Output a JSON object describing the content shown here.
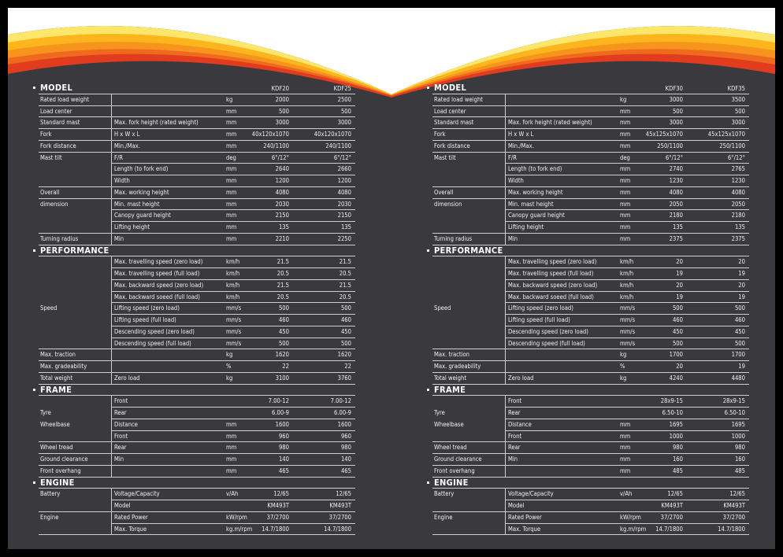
{
  "panels": [
    {
      "models": [
        "KDF20",
        "KDF25"
      ],
      "sections": [
        {
          "title": "MODEL",
          "rows": [
            {
              "label": "Rated load weight",
              "sub": "",
              "unit": "kg",
              "v1": "2000",
              "v2": "2500"
            },
            {
              "label": "Load center",
              "sub": "",
              "unit": "mm",
              "v1": "500",
              "v2": "500"
            },
            {
              "label": "Standard mast",
              "sub": "Max. fork height (rated weight)",
              "unit": "mm",
              "v1": "3000",
              "v2": "3000"
            },
            {
              "label": "Fork",
              "sub": "H x W x L",
              "unit": "mm",
              "v1": "40x120x1070",
              "v2": "40x120x1070"
            },
            {
              "label": "Fork distance",
              "sub": "Min./Max.",
              "unit": "mm",
              "v1": "240/1100",
              "v2": "240/1100"
            },
            {
              "label": "Mast tilt",
              "sub": "F/R",
              "unit": "deg",
              "v1": "6°/12°",
              "v2": "6°/12°"
            },
            {
              "label": "",
              "sub": "Length (to fork end)",
              "unit": "mm",
              "v1": "2640",
              "v2": "2660"
            },
            {
              "label": "",
              "sub": "Width",
              "unit": "mm",
              "v1": "1200",
              "v2": "1200"
            },
            {
              "label": "Overall",
              "sub": "Max. working height",
              "unit": "mm",
              "v1": "4080",
              "v2": "4080"
            },
            {
              "label": "dimension",
              "sub": "Min. mast height",
              "unit": "mm",
              "v1": "2030",
              "v2": "2030"
            },
            {
              "label": "",
              "sub": "Canopy guard height",
              "unit": "mm",
              "v1": "2150",
              "v2": "2150"
            },
            {
              "label": "",
              "sub": "Lifting height",
              "unit": "mm",
              "v1": "135",
              "v2": "135"
            },
            {
              "label": "Turning radius",
              "sub": "Min",
              "unit": "mm",
              "v1": "2210",
              "v2": "2250"
            }
          ]
        },
        {
          "title": "PERFORMANCE",
          "rows": [
            {
              "label": "",
              "sub": "Max. travelling speed (zero load)",
              "unit": "km/h",
              "v1": "21.5",
              "v2": "21.5"
            },
            {
              "label": "",
              "sub": "Max. travelling speed (full load)",
              "unit": "km/h",
              "v1": "20.5",
              "v2": "20.5"
            },
            {
              "label": "",
              "sub": "Max. backward speed (zero load)",
              "unit": "km/h",
              "v1": "21.5",
              "v2": "21.5"
            },
            {
              "label": "",
              "sub": "Max. backward soeed (full load)",
              "unit": "km/h",
              "v1": "20.5",
              "v2": "20.5"
            },
            {
              "label": "Speed",
              "sub": "Lifting speed (zero load)",
              "unit": "mm/s",
              "v1": "500",
              "v2": "500"
            },
            {
              "label": "",
              "sub": "Lifting speed (full load)",
              "unit": "mm/s",
              "v1": "460",
              "v2": "460"
            },
            {
              "label": "",
              "sub": "Descending speed (zero load)",
              "unit": "mm/s",
              "v1": "450",
              "v2": "450"
            },
            {
              "label": "",
              "sub": "Descending speed (full load)",
              "unit": "mm/s",
              "v1": "500",
              "v2": "500"
            },
            {
              "label": "Max. traction",
              "sub": "",
              "unit": "kg",
              "v1": "1620",
              "v2": "1620"
            },
            {
              "label": "Max. gradeability",
              "sub": "",
              "unit": "%",
              "v1": "22",
              "v2": "22"
            },
            {
              "label": "Total weight",
              "sub": "Zero load",
              "unit": "kg",
              "v1": "3100",
              "v2": "3760"
            }
          ]
        },
        {
          "title": "FRAME",
          "rows": [
            {
              "label": "",
              "sub": "Front",
              "unit": "",
              "v1": "7.00-12",
              "v2": "7.00-12"
            },
            {
              "label": "Tyre",
              "sub": "Rear",
              "unit": "",
              "v1": "6.00-9",
              "v2": "6.00-9"
            },
            {
              "label": "Wheelbase",
              "sub": "Distance",
              "unit": "mm",
              "v1": "1600",
              "v2": "1600"
            },
            {
              "label": "",
              "sub": "Front",
              "unit": "mm",
              "v1": "960",
              "v2": "960"
            },
            {
              "label": "Wheel tread",
              "sub": "Rear",
              "unit": "mm",
              "v1": "980",
              "v2": "980"
            },
            {
              "label": "Ground clearance",
              "sub": "Min",
              "unit": "mm",
              "v1": "140",
              "v2": "140"
            },
            {
              "label": "Front overhang",
              "sub": "",
              "unit": "mm",
              "v1": "465",
              "v2": "465"
            }
          ]
        },
        {
          "title": "ENGINE",
          "rows": [
            {
              "label": "Battery",
              "sub": "Voltage/Capacity",
              "unit": "v/Ah",
              "v1": "12/65",
              "v2": "12/65"
            },
            {
              "label": "",
              "sub": "Model",
              "unit": "",
              "v1": "KM493T",
              "v2": "KM493T"
            },
            {
              "label": "Engine",
              "sub": "Rated  Power",
              "unit": "kW/rpm",
              "v1": "37/2700",
              "v2": "37/2700"
            },
            {
              "label": "",
              "sub": "Max. Torque",
              "unit": "kg.m/rpm",
              "v1": "14.7/1800",
              "v2": "14.7/1800"
            }
          ]
        }
      ]
    },
    {
      "models": [
        "KDF30",
        "KDF35"
      ],
      "sections": [
        {
          "title": "MODEL",
          "rows": [
            {
              "label": "Rated load weight",
              "sub": "",
              "unit": "kg",
              "v1": "3000",
              "v2": "3500"
            },
            {
              "label": "Load center",
              "sub": "",
              "unit": "mm",
              "v1": "500",
              "v2": "500"
            },
            {
              "label": "Standard mast",
              "sub": "Max. fork height (rated weight)",
              "unit": "mm",
              "v1": "3000",
              "v2": "3000"
            },
            {
              "label": "Fork",
              "sub": "H x W x L",
              "unit": "mm",
              "v1": "45x125x1070",
              "v2": "45x125x1070"
            },
            {
              "label": "Fork distance",
              "sub": "Min./Max.",
              "unit": "mm",
              "v1": "250/1100",
              "v2": "250/1100"
            },
            {
              "label": "Mast tilt",
              "sub": "F/R",
              "unit": "deg",
              "v1": "6°/12°",
              "v2": "6°/12°"
            },
            {
              "label": "",
              "sub": "Length (to fork end)",
              "unit": "mm",
              "v1": "2740",
              "v2": "2765"
            },
            {
              "label": "",
              "sub": "Width",
              "unit": "mm",
              "v1": "1230",
              "v2": "1230"
            },
            {
              "label": "Overall",
              "sub": "Max. working height",
              "unit": "mm",
              "v1": "4080",
              "v2": "4080"
            },
            {
              "label": "dimension",
              "sub": "Min. mast height",
              "unit": "mm",
              "v1": "2050",
              "v2": "2050"
            },
            {
              "label": "",
              "sub": "Canopy guard height",
              "unit": "mm",
              "v1": "2180",
              "v2": "2180"
            },
            {
              "label": "",
              "sub": "Lifting height",
              "unit": "mm",
              "v1": "135",
              "v2": "135"
            },
            {
              "label": "Turning radius",
              "sub": "Min",
              "unit": "mm",
              "v1": "2375",
              "v2": "2375"
            }
          ]
        },
        {
          "title": "PERFORMANCE",
          "rows": [
            {
              "label": "",
              "sub": "Max. travelling speed (zero load)",
              "unit": "km/h",
              "v1": "20",
              "v2": "20"
            },
            {
              "label": "",
              "sub": "Max. travelling speed (full load)",
              "unit": "km/h",
              "v1": "19",
              "v2": "19"
            },
            {
              "label": "",
              "sub": "Max. backward speed (zero load)",
              "unit": "km/h",
              "v1": "20",
              "v2": "20"
            },
            {
              "label": "",
              "sub": "Max. backward soeed (full load)",
              "unit": "km/h",
              "v1": "19",
              "v2": "19"
            },
            {
              "label": "Speed",
              "sub": "Lifting speed (zero load)",
              "unit": "mm/s",
              "v1": "500",
              "v2": "500"
            },
            {
              "label": "",
              "sub": "Lifting speed (full load)",
              "unit": "mm/s",
              "v1": "460",
              "v2": "460"
            },
            {
              "label": "",
              "sub": "Descending speed (zero load)",
              "unit": "mm/s",
              "v1": "450",
              "v2": "450"
            },
            {
              "label": "",
              "sub": "Descending speed (full load)",
              "unit": "mm/s",
              "v1": "500",
              "v2": "500"
            },
            {
              "label": "Max. traction",
              "sub": "",
              "unit": "kg",
              "v1": "1700",
              "v2": "1700"
            },
            {
              "label": "Max. gradeability",
              "sub": "",
              "unit": "%",
              "v1": "20",
              "v2": "19"
            },
            {
              "label": "Total weight",
              "sub": "Zero load",
              "unit": "kg",
              "v1": "4240",
              "v2": "4480"
            }
          ]
        },
        {
          "title": "FRAME",
          "rows": [
            {
              "label": "",
              "sub": "Front",
              "unit": "",
              "v1": "28x9-15",
              "v2": "28x9-15"
            },
            {
              "label": "Tyre",
              "sub": "Rear",
              "unit": "",
              "v1": "6.50-10",
              "v2": "6.50-10"
            },
            {
              "label": "Wheelbase",
              "sub": "Distance",
              "unit": "mm",
              "v1": "1695",
              "v2": "1695"
            },
            {
              "label": "",
              "sub": "Front",
              "unit": "mm",
              "v1": "1000",
              "v2": "1000"
            },
            {
              "label": "Wheel tread",
              "sub": "Rear",
              "unit": "mm",
              "v1": "980",
              "v2": "980"
            },
            {
              "label": "Ground clearance",
              "sub": "Min",
              "unit": "mm",
              "v1": "160",
              "v2": "160"
            },
            {
              "label": "Front overhang",
              "sub": "",
              "unit": "mm",
              "v1": "485",
              "v2": "485"
            }
          ]
        },
        {
          "title": "ENGINE",
          "rows": [
            {
              "label": "Battery",
              "sub": "Voltage/Capacity",
              "unit": "v/Ah",
              "v1": "12/65",
              "v2": "12/65"
            },
            {
              "label": "",
              "sub": "Model",
              "unit": "",
              "v1": "KM493T",
              "v2": "KM493T"
            },
            {
              "label": "Engine",
              "sub": "Rated  Power",
              "unit": "kW/rpm",
              "v1": "37/2700",
              "v2": "37/2700"
            },
            {
              "label": "",
              "sub": "Max. Torque",
              "unit": "kg.m/rpm",
              "v1": "14.7/1800",
              "v2": "14.7/1800"
            }
          ]
        }
      ]
    }
  ]
}
